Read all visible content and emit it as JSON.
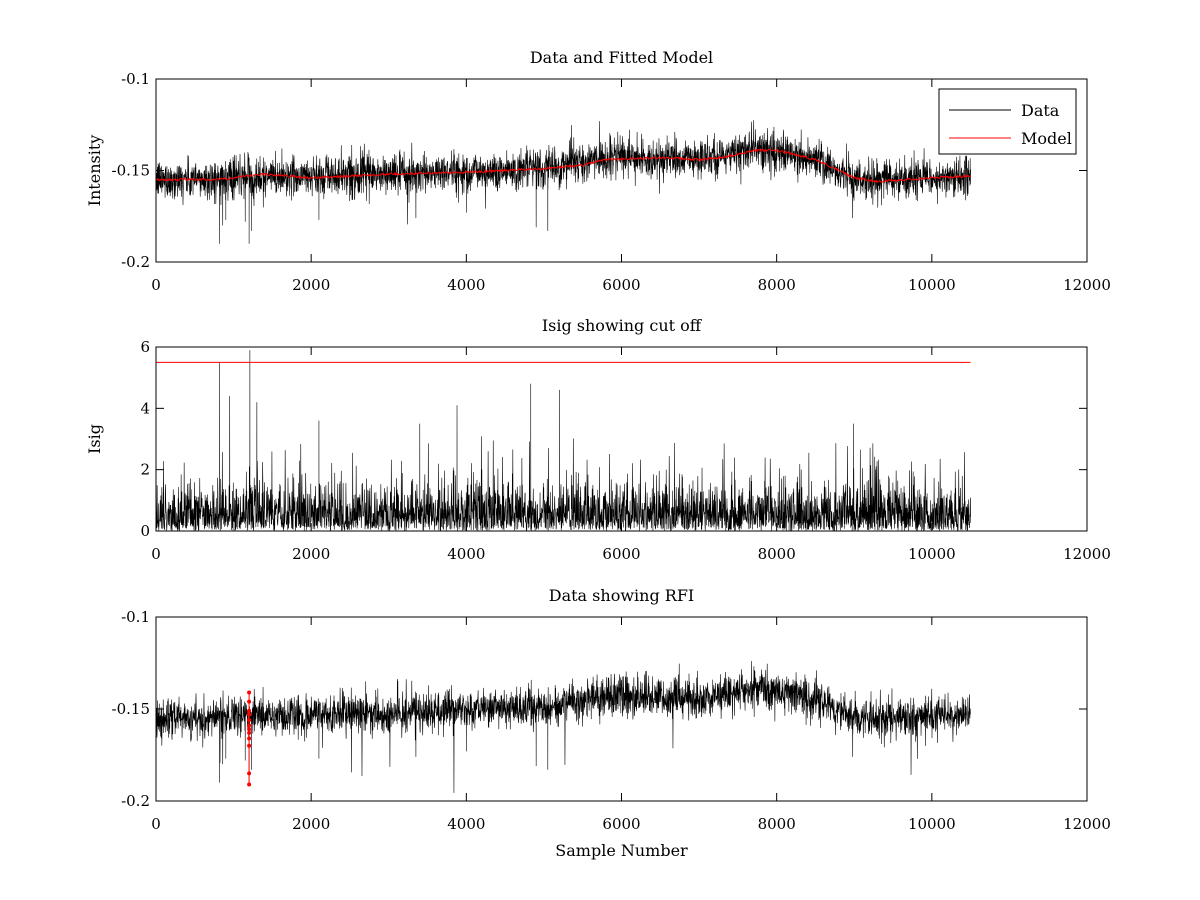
{
  "colors": {
    "data": "#000000",
    "model": "#ff0000",
    "rfi": "#ff0000",
    "cutoff": "#ff0000",
    "background": "#ffffff"
  },
  "chart_data": [
    {
      "type": "line",
      "title": "Data and Fitted Model",
      "xlabel": "",
      "ylabel": "Intensity",
      "xlim": [
        0,
        12000
      ],
      "ylim": [
        -0.2,
        -0.1
      ],
      "xticks": [
        0,
        2000,
        4000,
        6000,
        8000,
        10000,
        12000
      ],
      "yticks": [
        -0.1,
        -0.15,
        -0.2
      ],
      "xtick_labels": [
        "0",
        "2000",
        "4000",
        "6000",
        "8000",
        "10000",
        "12000"
      ],
      "ytick_labels": [
        "-0.1",
        "-0.15",
        "-0.2"
      ],
      "legend": {
        "position": "top-right",
        "entries": [
          "Data",
          "Model"
        ]
      },
      "series": [
        {
          "name": "Data",
          "style": "noisy",
          "x_range": [
            0,
            10500
          ],
          "n_samples": 10500,
          "baseline_x": [
            0,
            800,
            1500,
            3000,
            5000,
            5800,
            7000,
            7700,
            8500,
            9000,
            9500,
            10500
          ],
          "baseline_y": [
            -0.155,
            -0.155,
            -0.153,
            -0.152,
            -0.149,
            -0.143,
            -0.144,
            -0.138,
            -0.144,
            -0.155,
            -0.155,
            -0.153
          ],
          "noise_amplitude": 0.006,
          "spikes": [
            [
              820,
              -0.19
            ],
            [
              1200,
              -0.19
            ],
            [
              860,
              -0.18
            ],
            [
              1230,
              -0.183
            ],
            [
              2100,
              -0.177
            ],
            [
              4900,
              -0.181
            ],
            [
              5050,
              -0.183
            ],
            [
              8980,
              -0.176
            ],
            [
              9350,
              -0.169
            ],
            [
              900,
              -0.177
            ],
            [
              1150,
              -0.178
            ],
            [
              3350,
              -0.176
            ],
            [
              4000,
              -0.173
            ]
          ]
        },
        {
          "name": "Model",
          "x": [
            0,
            800,
            1000,
            1400,
            2000,
            2500,
            3000,
            4000,
            5000,
            5500,
            5800,
            6500,
            7000,
            7300,
            7700,
            8000,
            8500,
            8800,
            9000,
            9300,
            10000,
            10500
          ],
          "y": [
            -0.155,
            -0.155,
            -0.154,
            -0.152,
            -0.154,
            -0.153,
            -0.152,
            -0.151,
            -0.149,
            -0.147,
            -0.144,
            -0.143,
            -0.144,
            -0.143,
            -0.139,
            -0.139,
            -0.144,
            -0.15,
            -0.154,
            -0.156,
            -0.154,
            -0.153
          ]
        }
      ]
    },
    {
      "type": "line",
      "title": "Isig showing cut off",
      "xlabel": "",
      "ylabel": "Isig",
      "xlim": [
        0,
        12000
      ],
      "ylim": [
        0,
        6
      ],
      "xticks": [
        0,
        2000,
        4000,
        6000,
        8000,
        10000,
        12000
      ],
      "yticks": [
        0,
        2,
        4,
        6
      ],
      "xtick_labels": [
        "0",
        "2000",
        "4000",
        "6000",
        "8000",
        "10000",
        "12000"
      ],
      "ytick_labels": [
        "0",
        "2",
        "4",
        "6"
      ],
      "series": [
        {
          "style": "noisy-positive",
          "x_range": [
            0,
            10500
          ],
          "n_samples": 10500,
          "spikes": [
            [
              820,
              5.5
            ],
            [
              1210,
              5.9
            ],
            [
              4830,
              4.8
            ],
            [
              3880,
              4.1
            ],
            [
              8990,
              3.5
            ],
            [
              950,
              4.4
            ],
            [
              1300,
              4.2
            ],
            [
              2100,
              3.6
            ],
            [
              3400,
              3.5
            ],
            [
              5200,
              4.6
            ]
          ]
        },
        {
          "style": "cutoff",
          "x": [
            0,
            10500
          ],
          "y": [
            5.5,
            5.5
          ]
        }
      ]
    },
    {
      "type": "line",
      "title": "Data showing RFI",
      "xlabel": "Sample Number",
      "ylabel": "",
      "xlim": [
        0,
        12000
      ],
      "ylim": [
        -0.2,
        -0.1
      ],
      "xticks": [
        0,
        2000,
        4000,
        6000,
        8000,
        10000,
        12000
      ],
      "yticks": [
        -0.1,
        -0.15,
        -0.2
      ],
      "xtick_labels": [
        "0",
        "2000",
        "4000",
        "6000",
        "8000",
        "10000",
        "12000"
      ],
      "ytick_labels": [
        "-0.1",
        "-0.15",
        "-0.2"
      ],
      "series": [
        {
          "style": "noisy",
          "x_range": [
            0,
            10500
          ],
          "n_samples": 10500,
          "baseline_x": [
            0,
            800,
            1500,
            3000,
            5000,
            5800,
            7000,
            7700,
            8500,
            9000,
            9500,
            10500
          ],
          "baseline_y": [
            -0.155,
            -0.155,
            -0.153,
            -0.152,
            -0.149,
            -0.143,
            -0.144,
            -0.138,
            -0.144,
            -0.155,
            -0.155,
            -0.153
          ],
          "noise_amplitude": 0.006,
          "spikes": [
            [
              820,
              -0.19
            ],
            [
              1200,
              -0.19
            ],
            [
              860,
              -0.18
            ],
            [
              1230,
              -0.183
            ],
            [
              2100,
              -0.177
            ],
            [
              4900,
              -0.181
            ],
            [
              5050,
              -0.183
            ],
            [
              8980,
              -0.176
            ],
            [
              9350,
              -0.169
            ],
            [
              900,
              -0.177
            ],
            [
              1150,
              -0.178
            ],
            [
              3350,
              -0.176
            ],
            [
              4000,
              -0.173
            ]
          ]
        },
        {
          "style": "rfi-points",
          "x": [
            1200,
            1200,
            1200,
            1200,
            1200,
            1200,
            1200,
            1200,
            1200,
            1200,
            1200,
            1200
          ],
          "y": [
            -0.141,
            -0.146,
            -0.151,
            -0.153,
            -0.156,
            -0.159,
            -0.161,
            -0.163,
            -0.166,
            -0.17,
            -0.185,
            -0.191
          ]
        }
      ]
    }
  ]
}
